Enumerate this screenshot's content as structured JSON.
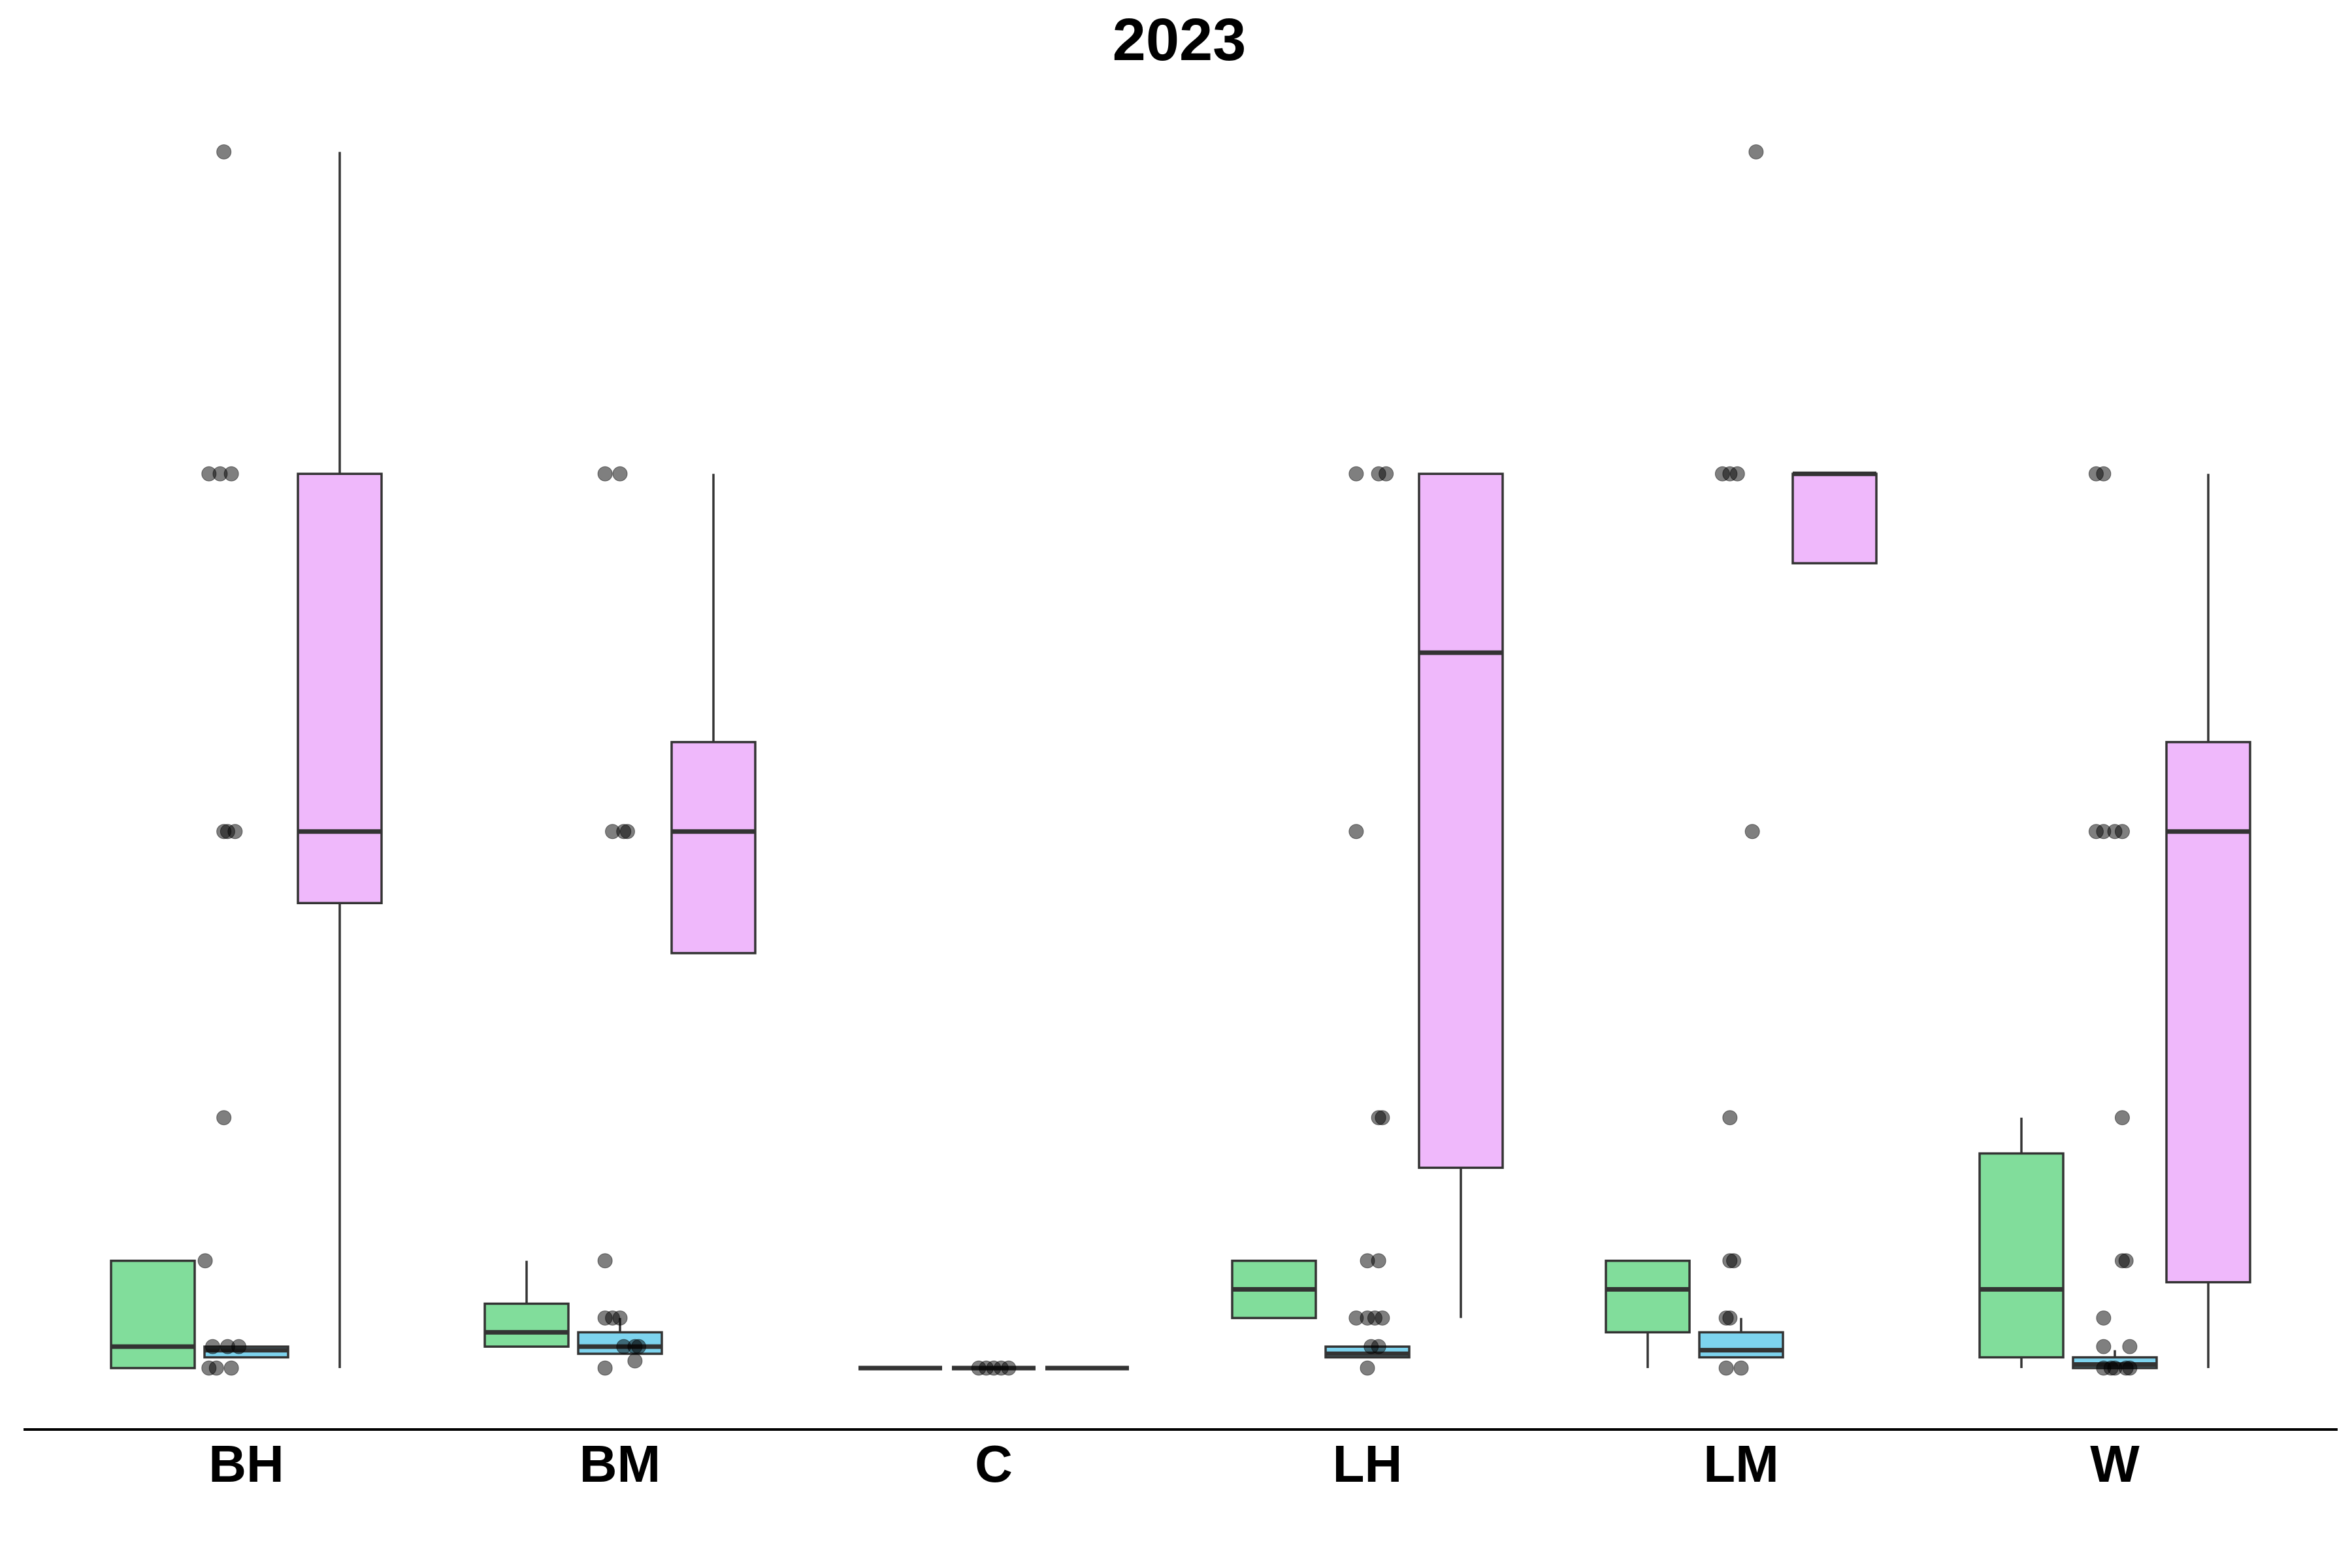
{
  "chart_data": {
    "type": "box",
    "title": "2023",
    "xlabel": "",
    "ylabel": "",
    "categories": [
      "BH",
      "BM",
      "C",
      "LH",
      "LM",
      "W"
    ],
    "ylim": [
      -0.4,
      16.6
    ],
    "grid": false,
    "legend": "none",
    "series": [
      {
        "color": "#81dd9b",
        "boxes": [
          {
            "whislo": 0,
            "q1": 0,
            "med": 0.3,
            "q3": 1.5,
            "whishi": 1.5
          },
          {
            "whislo": 0.3,
            "q1": 0.3,
            "med": 0.5,
            "q3": 0.9,
            "whishi": 1.5
          },
          {
            "whislo": 0,
            "q1": 0,
            "med": 0,
            "q3": 0,
            "whishi": 0
          },
          {
            "whislo": 0.7,
            "q1": 0.7,
            "med": 1.1,
            "q3": 1.5,
            "whishi": 1.5
          },
          {
            "whislo": 0,
            "q1": 0.5,
            "med": 1.1,
            "q3": 1.5,
            "whishi": 1.5
          },
          {
            "whislo": 0,
            "q1": 0.15,
            "med": 1.1,
            "q3": 3.0,
            "whishi": 3.5
          }
        ]
      },
      {
        "color": "#7dd3ee",
        "boxes": [
          {
            "whislo": 0.15,
            "q1": 0.15,
            "med": 0.25,
            "q3": 0.3,
            "whishi": 0.3
          },
          {
            "whislo": 0.2,
            "q1": 0.2,
            "med": 0.3,
            "q3": 0.5,
            "whishi": 0.7
          },
          {
            "whislo": 0,
            "q1": 0,
            "med": 0,
            "q3": 0,
            "whishi": 0
          },
          {
            "whislo": 0.15,
            "q1": 0.15,
            "med": 0.2,
            "q3": 0.3,
            "whishi": 0.3
          },
          {
            "whislo": 0.15,
            "q1": 0.15,
            "med": 0.25,
            "q3": 0.5,
            "whishi": 0.7
          },
          {
            "whislo": 0,
            "q1": 0,
            "med": 0.05,
            "q3": 0.15,
            "whishi": 0.25
          }
        ]
      },
      {
        "color": "#efb8fb",
        "boxes": [
          {
            "whislo": 0,
            "q1": 6.5,
            "med": 7.5,
            "q3": 12.5,
            "whishi": 17
          },
          {
            "whislo": 5.8,
            "q1": 5.8,
            "med": 7.5,
            "q3": 8.75,
            "whishi": 12.5
          },
          {
            "whislo": 0,
            "q1": 0,
            "med": 0,
            "q3": 0,
            "whishi": 0
          },
          {
            "whislo": 0.7,
            "q1": 2.8,
            "med": 10,
            "q3": 12.5,
            "whishi": 12.5
          },
          {
            "whislo": 11.25,
            "q1": 11.25,
            "med": 12.5,
            "q3": 12.5,
            "whishi": 12.5
          },
          {
            "whislo": 0,
            "q1": 1.2,
            "med": 7.5,
            "q3": 8.75,
            "whishi": 12.5
          }
        ]
      }
    ],
    "points": [
      {
        "category": "BH",
        "offset": -0.06,
        "y": 17
      },
      {
        "category": "BH",
        "offset": -0.1,
        "y": 12.5
      },
      {
        "category": "BH",
        "offset": -0.07,
        "y": 12.5
      },
      {
        "category": "BH",
        "offset": -0.04,
        "y": 12.5
      },
      {
        "category": "BH",
        "offset": -0.06,
        "y": 7.5
      },
      {
        "category": "BH",
        "offset": -0.03,
        "y": 7.5
      },
      {
        "category": "BH",
        "offset": -0.05,
        "y": 7.5
      },
      {
        "category": "BH",
        "offset": -0.06,
        "y": 3.5
      },
      {
        "category": "BH",
        "offset": -0.11,
        "y": 1.5
      },
      {
        "category": "BH",
        "offset": -0.09,
        "y": 0.3
      },
      {
        "category": "BH",
        "offset": -0.05,
        "y": 0.3
      },
      {
        "category": "BH",
        "offset": -0.02,
        "y": 0.3
      },
      {
        "category": "BH",
        "offset": -0.1,
        "y": 0
      },
      {
        "category": "BH",
        "offset": -0.08,
        "y": 0
      },
      {
        "category": "BH",
        "offset": -0.04,
        "y": 0
      },
      {
        "category": "BM",
        "offset": -0.04,
        "y": 12.5
      },
      {
        "category": "BM",
        "offset": 0.0,
        "y": 12.5
      },
      {
        "category": "BM",
        "offset": -0.02,
        "y": 7.5
      },
      {
        "category": "BM",
        "offset": 0.01,
        "y": 7.5
      },
      {
        "category": "BM",
        "offset": 0.02,
        "y": 7.5
      },
      {
        "category": "BM",
        "offset": -0.04,
        "y": 1.5
      },
      {
        "category": "BM",
        "offset": -0.04,
        "y": 0.7
      },
      {
        "category": "BM",
        "offset": -0.02,
        "y": 0.7
      },
      {
        "category": "BM",
        "offset": -0.0,
        "y": 0.7
      },
      {
        "category": "BM",
        "offset": 0.01,
        "y": 0.3
      },
      {
        "category": "BM",
        "offset": 0.04,
        "y": 0.3
      },
      {
        "category": "BM",
        "offset": 0.05,
        "y": 0.3
      },
      {
        "category": "BM",
        "offset": -0.04,
        "y": 0
      },
      {
        "category": "BM",
        "offset": 0.04,
        "y": 0.1
      },
      {
        "category": "C",
        "offset": -0.04,
        "y": 0
      },
      {
        "category": "C",
        "offset": -0.02,
        "y": 0
      },
      {
        "category": "C",
        "offset": 0.0,
        "y": 0
      },
      {
        "category": "C",
        "offset": 0.02,
        "y": 0
      },
      {
        "category": "C",
        "offset": 0.04,
        "y": 0
      },
      {
        "category": "LH",
        "offset": -0.03,
        "y": 12.5
      },
      {
        "category": "LH",
        "offset": 0.03,
        "y": 12.5
      },
      {
        "category": "LH",
        "offset": 0.05,
        "y": 12.5
      },
      {
        "category": "LH",
        "offset": -0.03,
        "y": 7.5
      },
      {
        "category": "LH",
        "offset": 0.03,
        "y": 3.5
      },
      {
        "category": "LH",
        "offset": 0.04,
        "y": 3.5
      },
      {
        "category": "LH",
        "offset": 0.0,
        "y": 1.5
      },
      {
        "category": "LH",
        "offset": 0.03,
        "y": 1.5
      },
      {
        "category": "LH",
        "offset": -0.03,
        "y": 0.7
      },
      {
        "category": "LH",
        "offset": 0.0,
        "y": 0.7
      },
      {
        "category": "LH",
        "offset": 0.02,
        "y": 0.7
      },
      {
        "category": "LH",
        "offset": 0.04,
        "y": 0.7
      },
      {
        "category": "LH",
        "offset": 0.01,
        "y": 0.3
      },
      {
        "category": "LH",
        "offset": 0.03,
        "y": 0.3
      },
      {
        "category": "LH",
        "offset": 0.0,
        "y": 0
      },
      {
        "category": "LM",
        "offset": -0.05,
        "y": 12.5
      },
      {
        "category": "LM",
        "offset": -0.03,
        "y": 12.5
      },
      {
        "category": "LM",
        "offset": -0.01,
        "y": 12.5
      },
      {
        "category": "LM",
        "offset": 0.04,
        "y": 17
      },
      {
        "category": "LM",
        "offset": 0.03,
        "y": 7.5
      },
      {
        "category": "LM",
        "offset": -0.03,
        "y": 3.5
      },
      {
        "category": "LM",
        "offset": -0.03,
        "y": 1.5
      },
      {
        "category": "LM",
        "offset": -0.02,
        "y": 1.5
      },
      {
        "category": "LM",
        "offset": -0.04,
        "y": 0.7
      },
      {
        "category": "LM",
        "offset": -0.03,
        "y": 0.7
      },
      {
        "category": "LM",
        "offset": -0.04,
        "y": 0
      },
      {
        "category": "LM",
        "offset": 0.0,
        "y": 0
      },
      {
        "category": "W",
        "offset": -0.05,
        "y": 12.5
      },
      {
        "category": "W",
        "offset": -0.03,
        "y": 12.5
      },
      {
        "category": "W",
        "offset": -0.05,
        "y": 7.5
      },
      {
        "category": "W",
        "offset": -0.03,
        "y": 7.5
      },
      {
        "category": "W",
        "offset": 0.0,
        "y": 7.5
      },
      {
        "category": "W",
        "offset": 0.02,
        "y": 7.5
      },
      {
        "category": "W",
        "offset": 0.02,
        "y": 3.5
      },
      {
        "category": "W",
        "offset": 0.02,
        "y": 1.5
      },
      {
        "category": "W",
        "offset": 0.03,
        "y": 1.5
      },
      {
        "category": "W",
        "offset": -0.03,
        "y": 0.7
      },
      {
        "category": "W",
        "offset": -0.03,
        "y": 0.3
      },
      {
        "category": "W",
        "offset": 0.04,
        "y": 0.3
      },
      {
        "category": "W",
        "offset": -0.03,
        "y": 0
      },
      {
        "category": "W",
        "offset": -0.01,
        "y": 0
      },
      {
        "category": "W",
        "offset": 0.0,
        "y": 0
      },
      {
        "category": "W",
        "offset": 0.03,
        "y": 0
      },
      {
        "category": "W",
        "offset": 0.04,
        "y": 0
      }
    ]
  }
}
